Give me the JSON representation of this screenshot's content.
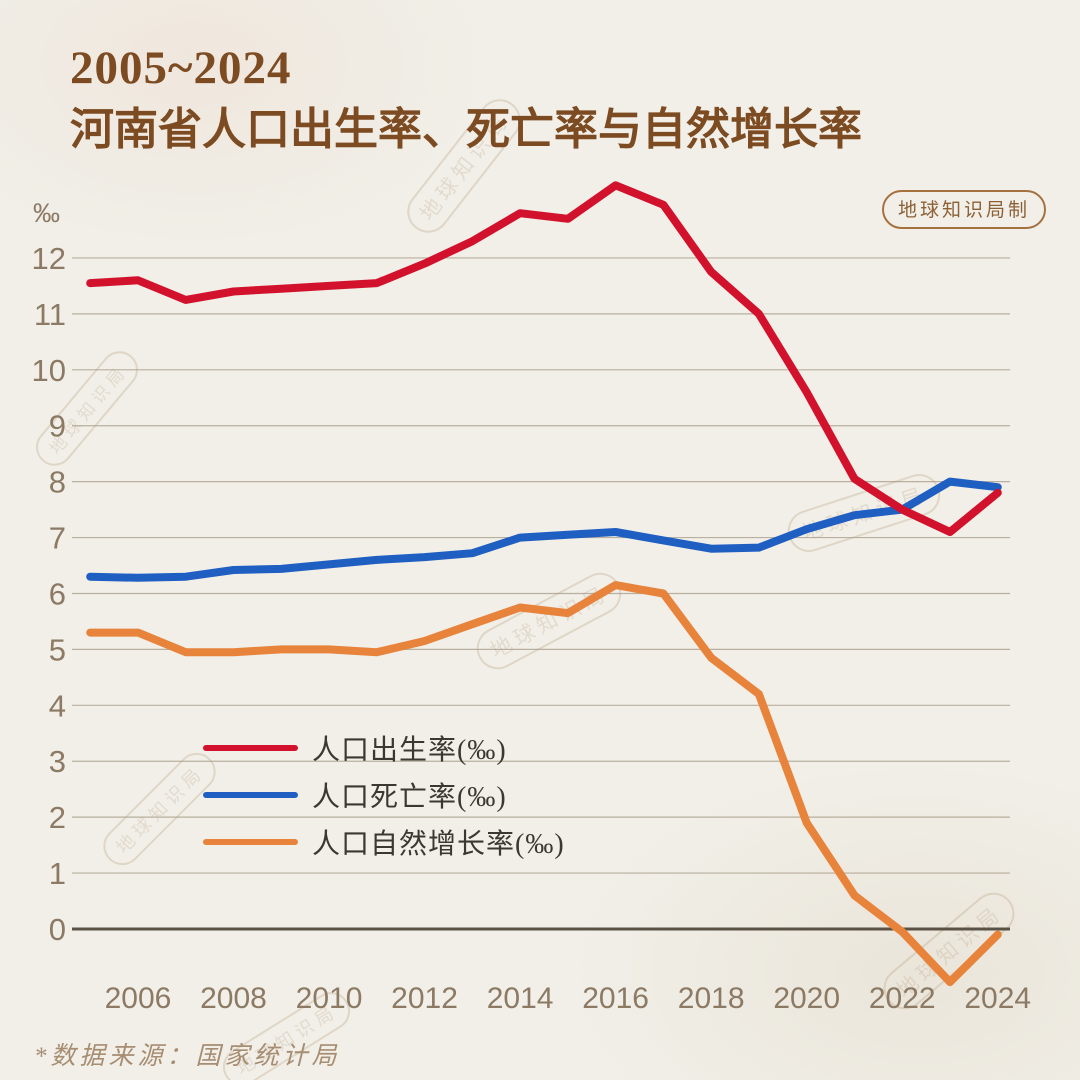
{
  "page": {
    "background": "#f1efe8"
  },
  "header": {
    "title_line1": "2005~2024",
    "title_line2": "河南省人口出生率、死亡率与自然增长率",
    "badge_label": "地球知识局制"
  },
  "axes": {
    "unit_label": "‰"
  },
  "legend": {
    "items": [
      {
        "label": "人口出生率(‰)",
        "color": "#d2122d"
      },
      {
        "label": "人口死亡率(‰)",
        "color": "#1f5fc2"
      },
      {
        "label": "人口自然增长率(‰)",
        "color": "#e8833c"
      }
    ]
  },
  "footnote": "*数据来源：国家统计局",
  "watermark": {
    "text": "地球知识局"
  },
  "colors": {
    "title": "#7d4b22",
    "tick_text": "#8c7a64",
    "gridline": "#aaa08c",
    "zero_line": "#5a5244",
    "birth": "#d2122d",
    "death": "#1f5fc2",
    "growth": "#e8833c"
  },
  "chart_data": {
    "type": "line",
    "title": "2005~2024 河南省人口出生率、死亡率与自然增长率",
    "xlabel": "",
    "ylabel": "‰",
    "x": [
      2005,
      2006,
      2007,
      2008,
      2009,
      2010,
      2011,
      2012,
      2013,
      2014,
      2015,
      2016,
      2017,
      2018,
      2019,
      2020,
      2021,
      2022,
      2023,
      2024
    ],
    "xticks": [
      2006,
      2008,
      2010,
      2012,
      2014,
      2016,
      2018,
      2020,
      2022,
      2024
    ],
    "yticks": [
      0,
      1,
      2,
      3,
      4,
      5,
      6,
      7,
      8,
      9,
      10,
      11,
      12
    ],
    "ylim": [
      -1.1,
      13.5
    ],
    "grid": true,
    "legend_position": "inside-left-middle",
    "series": [
      {
        "name": "人口出生率(‰)",
        "color": "#d2122d",
        "values": [
          11.55,
          11.6,
          11.25,
          11.4,
          11.45,
          11.5,
          11.55,
          11.9,
          12.3,
          12.8,
          12.7,
          13.3,
          12.95,
          11.75,
          11.0,
          9.6,
          8.05,
          7.5,
          7.1,
          7.8
        ]
      },
      {
        "name": "人口死亡率(‰)",
        "color": "#1f5fc2",
        "values": [
          6.3,
          6.28,
          6.3,
          6.42,
          6.44,
          6.52,
          6.6,
          6.65,
          6.72,
          7.0,
          7.05,
          7.1,
          6.95,
          6.8,
          6.82,
          7.15,
          7.4,
          7.5,
          8.0,
          7.9
        ]
      },
      {
        "name": "人口自然增长率(‰)",
        "color": "#e8833c",
        "values": [
          5.3,
          5.3,
          4.95,
          4.95,
          5.0,
          5.0,
          4.95,
          5.15,
          5.45,
          5.75,
          5.65,
          6.15,
          6.0,
          4.85,
          4.2,
          1.9,
          0.6,
          -0.05,
          -0.95,
          -0.1
        ]
      }
    ]
  }
}
